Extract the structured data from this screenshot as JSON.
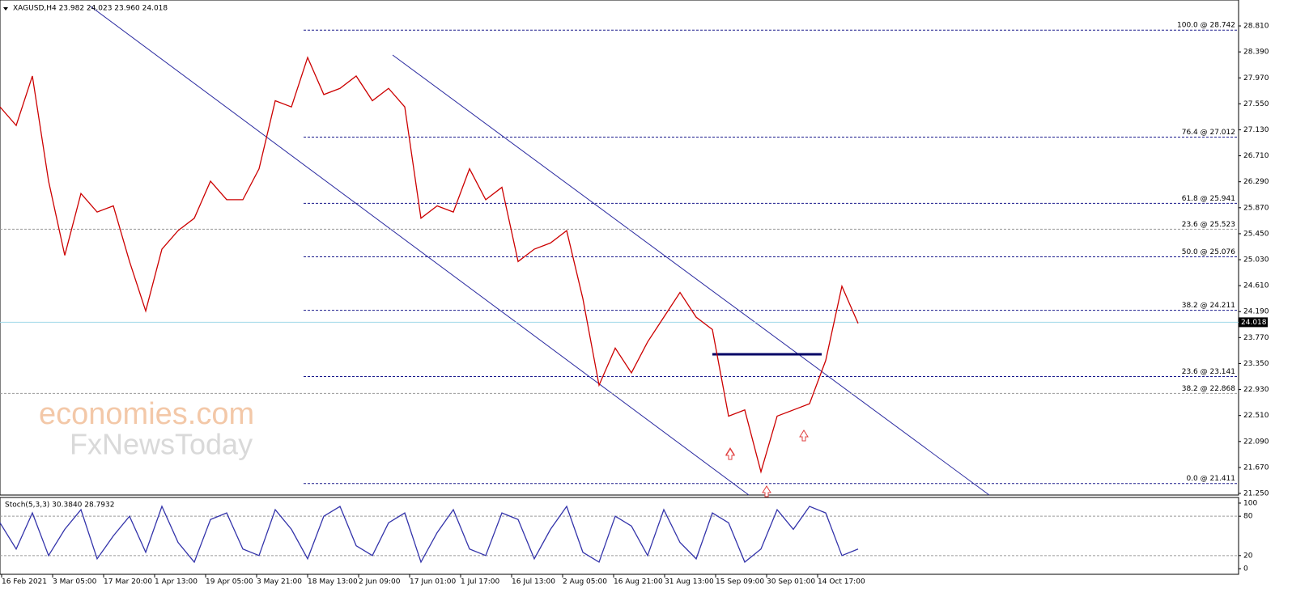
{
  "chart_data": [
    {
      "type": "line",
      "title": "XAGUSD,H4  23.982 24.023 23.960 24.018",
      "watermark": [
        "economies.com",
        "FxNewsToday"
      ],
      "x_labels": [
        "16 Feb 2021",
        "3 Mar 05:00",
        "17 Mar 20:00",
        "1 Apr 13:00",
        "19 Apr 05:00",
        "3 May 21:00",
        "18 May 13:00",
        "2 Jun 09:00",
        "17 Jun 01:00",
        "1 Jul 17:00",
        "16 Jul 13:00",
        "2 Aug 05:00",
        "16 Aug 21:00",
        "31 Aug 13:00",
        "15 Sep 09:00",
        "30 Sep 01:00",
        "14 Oct 17:00"
      ],
      "series": [
        {
          "name": "XAGUSD",
          "color": "#cc0000",
          "values": [
            27.5,
            27.2,
            28.0,
            26.3,
            25.1,
            26.1,
            25.8,
            25.9,
            25.0,
            24.2,
            25.2,
            25.5,
            25.7,
            26.3,
            26.0,
            26.0,
            26.5,
            27.6,
            27.5,
            28.3,
            27.7,
            27.8,
            28.0,
            27.6,
            27.8,
            27.5,
            25.7,
            25.9,
            25.8,
            26.5,
            26.0,
            26.2,
            25.0,
            25.2,
            25.3,
            25.5,
            24.4,
            23.0,
            23.6,
            23.2,
            23.7,
            24.1,
            24.5,
            24.1,
            23.9,
            22.5,
            22.6,
            21.6,
            22.5,
            22.6,
            22.7,
            23.4,
            24.6,
            24.0
          ]
        }
      ],
      "current_price": {
        "value": 24.018,
        "label": "24.018"
      },
      "fib_levels": [
        {
          "value": 28.742,
          "label": "100.0 @ 28.742",
          "color": "#1a1a8c"
        },
        {
          "value": 27.012,
          "label": "76.4 @ 27.012",
          "color": "#1a1a8c"
        },
        {
          "value": 25.941,
          "label": "61.8 @ 25.941",
          "color": "#1a1a8c"
        },
        {
          "value": 25.523,
          "label": "23.6 @ 25.523",
          "color": "#999999"
        },
        {
          "value": 25.076,
          "label": "50.0 @ 25.076",
          "color": "#1a1a8c"
        },
        {
          "value": 24.211,
          "label": "38.2 @ 24.211",
          "color": "#1a1a8c"
        },
        {
          "value": 23.141,
          "label": "23.6 @ 23.141",
          "color": "#1a1a8c"
        },
        {
          "value": 22.868,
          "label": "38.2 @ 22.868",
          "color": "#999999"
        },
        {
          "value": 21.411,
          "label": "0.0 @ 21.411",
          "color": "#1a1a8c"
        }
      ],
      "ylim": [
        21.224,
        29.229
      ],
      "yticks": [
        {
          "value": 28.81,
          "label": "28.810"
        },
        {
          "value": 28.39,
          "label": "28.390"
        },
        {
          "value": 27.97,
          "label": "27.970"
        },
        {
          "value": 27.55,
          "label": "27.550"
        },
        {
          "value": 27.13,
          "label": "27.130"
        },
        {
          "value": 26.71,
          "label": "26.710"
        },
        {
          "value": 26.29,
          "label": "26.290"
        },
        {
          "value": 25.87,
          "label": "25.870"
        },
        {
          "value": 25.45,
          "label": "25.450"
        },
        {
          "value": 25.03,
          "label": "25.030"
        },
        {
          "value": 24.61,
          "label": "24.610"
        },
        {
          "value": 24.19,
          "label": "24.190"
        },
        {
          "value": 23.77,
          "label": "23.770"
        },
        {
          "value": 23.35,
          "label": "23.350"
        },
        {
          "value": 22.93,
          "label": "22.930"
        },
        {
          "value": 22.51,
          "label": "22.510"
        },
        {
          "value": 22.09,
          "label": "22.090"
        },
        {
          "value": 21.67,
          "label": "21.670"
        },
        {
          "value": 21.25,
          "label": "21.250"
        }
      ]
    },
    {
      "type": "line",
      "title": "Stoch(5,3,3) 30.3840 28.7932",
      "series": [
        {
          "name": "Stoch",
          "color": "#3333aa",
          "values": [
            70,
            30,
            85,
            20,
            60,
            90,
            15,
            50,
            80,
            25,
            95,
            40,
            10,
            75,
            85,
            30,
            20,
            90,
            60,
            15,
            80,
            95,
            35,
            20,
            70,
            85,
            10,
            55,
            90,
            30,
            20,
            85,
            75,
            15,
            60,
            95,
            25,
            10,
            80,
            65,
            20,
            90,
            40,
            15,
            85,
            70,
            10,
            30,
            90,
            60,
            95,
            85,
            20,
            30
          ]
        }
      ],
      "ylim": [
        -8.6,
        108.6
      ],
      "yticks": [
        100,
        80,
        20,
        0
      ],
      "levels": [
        80,
        20
      ]
    }
  ]
}
